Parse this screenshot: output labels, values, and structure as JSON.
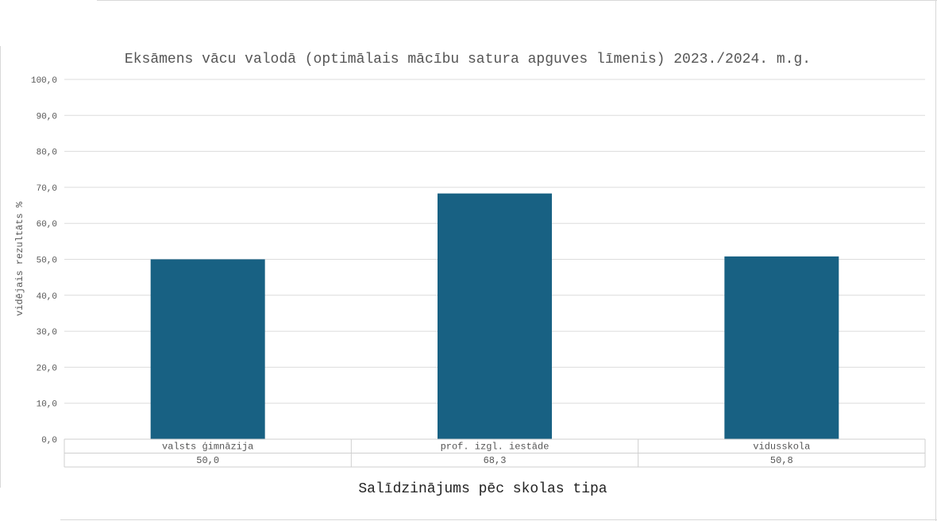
{
  "chart_data": {
    "type": "bar",
    "title": "Eksāmens vācu valodā (optimālais mācību satura apguves līmenis) 2023./2024. m.g.",
    "xlabel": "Salīdzinājums pēc skolas tipa",
    "ylabel": "vidējais rezultāts %",
    "categories": [
      "valsts ģimnāzija",
      "prof. izgl. iestāde",
      "vidusskola"
    ],
    "values": [
      50.0,
      68.3,
      50.8
    ],
    "value_labels": [
      "50,0",
      "68,3",
      "50,8"
    ],
    "ylim": [
      0,
      100
    ],
    "yticks": [
      "0,0",
      "10,0",
      "20,0",
      "30,0",
      "40,0",
      "50,0",
      "60,0",
      "70,0",
      "80,0",
      "90,0",
      "100,0"
    ],
    "grid": true,
    "bar_color": "#186183",
    "legend": "none"
  }
}
